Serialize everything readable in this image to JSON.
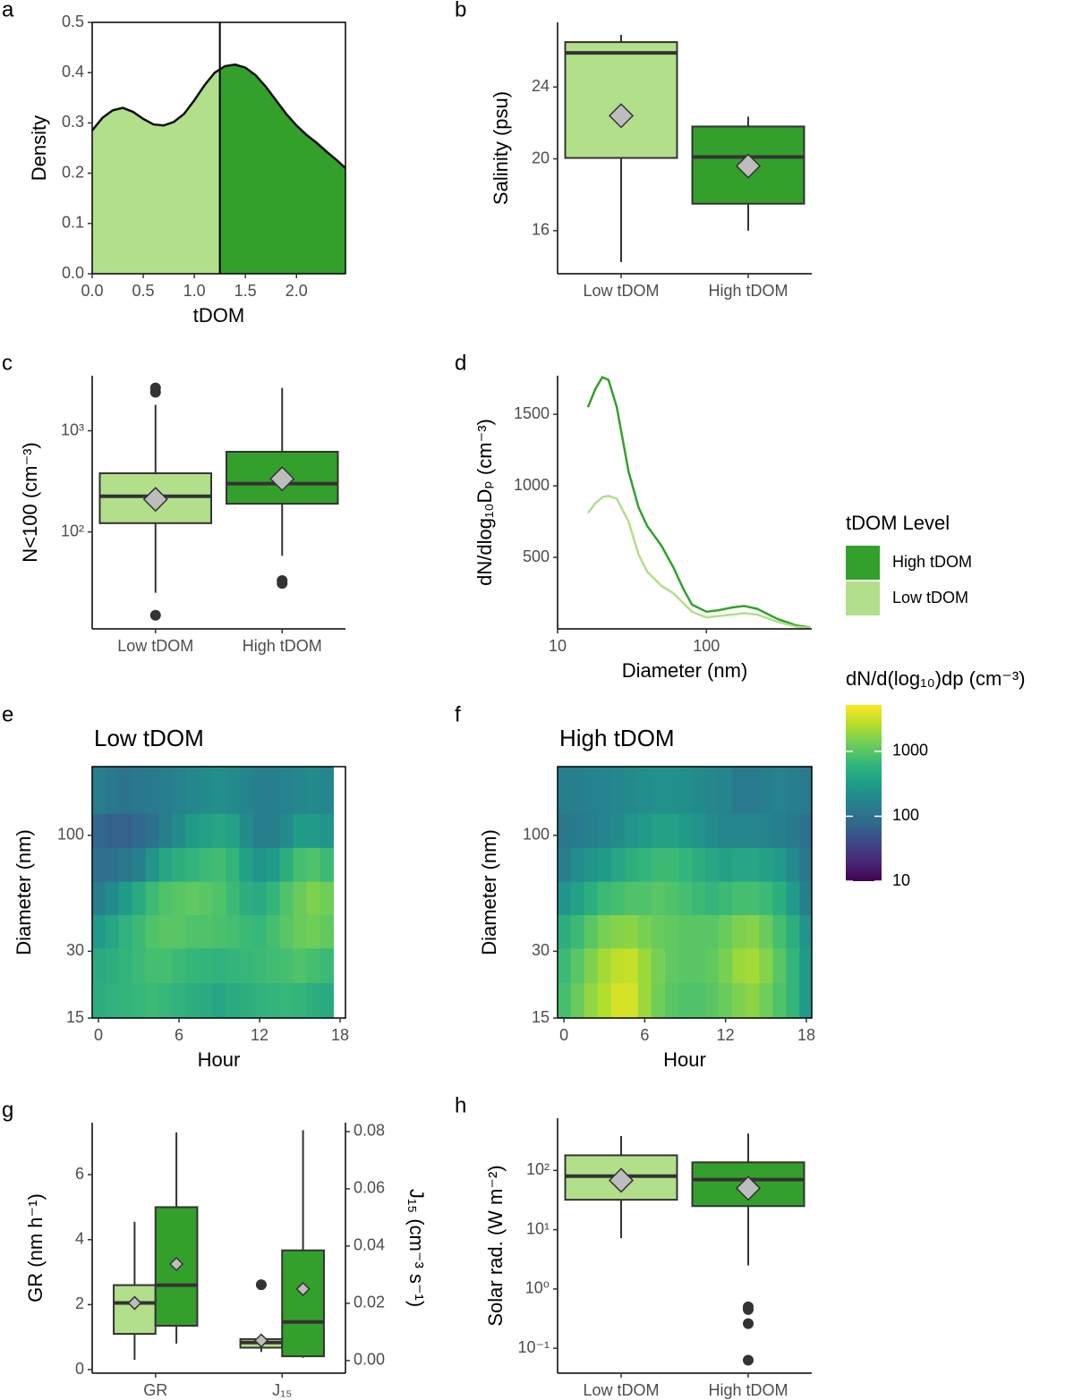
{
  "chart_data": [
    {
      "panel": "a",
      "type": "area",
      "x": [
        0,
        0.1,
        0.2,
        0.3,
        0.4,
        0.5,
        0.6,
        0.7,
        0.8,
        0.9,
        1.0,
        1.1,
        1.2,
        1.3,
        1.4,
        1.5,
        1.6,
        1.7,
        1.8,
        1.9,
        2.0,
        2.1,
        2.2,
        2.3,
        2.4,
        2.48
      ],
      "values": [
        0.285,
        0.31,
        0.325,
        0.33,
        0.322,
        0.308,
        0.297,
        0.295,
        0.302,
        0.318,
        0.345,
        0.375,
        0.4,
        0.413,
        0.416,
        0.41,
        0.395,
        0.372,
        0.345,
        0.318,
        0.295,
        0.276,
        0.26,
        0.242,
        0.225,
        0.21
      ],
      "split": 1.25,
      "colors": [
        "#b2df8a",
        "#33a02c"
      ],
      "xlim": [
        0,
        2.48
      ],
      "ylim": [
        0,
        0.5
      ],
      "xticks": [
        {
          "value": 0,
          "label": "0.0"
        },
        0.5,
        {
          "value": 1,
          "label": "1.0"
        },
        1.5,
        {
          "value": 2,
          "label": "2.0"
        }
      ],
      "yticks": [
        {
          "value": 0,
          "label": "0.0"
        },
        0.1,
        0.2,
        0.3,
        0.4,
        0.5
      ],
      "xlabel": "tDOM",
      "ylabel": "Density",
      "border": true
    },
    {
      "panel": "b",
      "type": "box",
      "categories": [
        "Low tDOM",
        "High tDOM"
      ],
      "boxes": [
        {
          "color": "#b2df8a",
          "whislo": 14.25,
          "q1": 20.05,
          "med": 25.9,
          "q3": 26.5,
          "whishi": 26.9,
          "mean": 22.4,
          "fliers": []
        },
        {
          "color": "#33a02c",
          "whislo": 16,
          "q1": 17.5,
          "med": 20.1,
          "q3": 21.8,
          "whishi": 22.35,
          "mean": 19.6,
          "fliers": []
        }
      ],
      "ylim": [
        13.6,
        27.6
      ],
      "yticks": [
        16,
        20,
        24
      ],
      "ylabel": "Salinity (psu)"
    },
    {
      "panel": "c",
      "type": "box",
      "categories": [
        "Low tDOM",
        "High tDOM"
      ],
      "ylog": true,
      "boxes": [
        {
          "color": "#b2df8a",
          "whislo": 25,
          "q1": 122,
          "med": 225,
          "q3": 380,
          "whishi": 1800,
          "mean": 210,
          "fliers": [
            2650,
            2400,
            15
          ]
        },
        {
          "color": "#33a02c",
          "whislo": 58,
          "q1": 190,
          "med": 300,
          "q3": 620,
          "whishi": 2650,
          "mean": 335,
          "fliers": [
            33,
            31
          ]
        }
      ],
      "ylim": [
        11,
        3500
      ],
      "yticks": [
        {
          "value": 100,
          "label": "10²"
        },
        {
          "value": 1000,
          "label": "10³"
        }
      ],
      "ylabel": "N<100 (cm⁻³)"
    },
    {
      "panel": "d",
      "type": "line",
      "xlog": true,
      "x": [
        16,
        18,
        20,
        22,
        25,
        30,
        35,
        40,
        50,
        60,
        70,
        80,
        100,
        120,
        150,
        180,
        220,
        300,
        400,
        500
      ],
      "series": [
        {
          "name": "High tDOM",
          "color": "#33a02c",
          "values": [
            1550,
            1680,
            1760,
            1740,
            1550,
            1100,
            850,
            720,
            580,
            430,
            280,
            170,
            120,
            130,
            150,
            160,
            140,
            70,
            25,
            8
          ]
        },
        {
          "name": "Low tDOM",
          "color": "#b2df8a",
          "values": [
            810,
            880,
            920,
            930,
            910,
            750,
            520,
            400,
            300,
            250,
            180,
            120,
            80,
            90,
            100,
            110,
            100,
            50,
            15,
            5
          ]
        }
      ],
      "xlim": [
        10,
        511
      ],
      "ylim": [
        0,
        1770
      ],
      "xticks": [
        10,
        100
      ],
      "yticks": [
        500,
        1000,
        1500
      ],
      "xlabel": "Diameter (nm)",
      "ylabel": "dN/dlog₁₀Dₚ (cm⁻³)",
      "legend_title": "tDOM Level"
    },
    {
      "panel": "e",
      "type": "heatmap",
      "title": "Low tDOM",
      "ylog": true,
      "x": [
        0,
        1,
        2,
        3,
        4,
        5,
        6,
        7,
        8,
        9,
        10,
        11,
        12,
        13,
        14,
        15,
        16,
        17
      ],
      "y": [
        18,
        26,
        37,
        52,
        74,
        105,
        150
      ],
      "z": [
        [
          500,
          550,
          600,
          650,
          700,
          650,
          550,
          500,
          450,
          400,
          450,
          500,
          550,
          600,
          650,
          600,
          500,
          450
        ],
        [
          450,
          500,
          600,
          700,
          800,
          800,
          700,
          650,
          600,
          550,
          600,
          650,
          700,
          750,
          800,
          900,
          800,
          700
        ],
        [
          300,
          400,
          550,
          700,
          900,
          1000,
          1000,
          900,
          900,
          850,
          800,
          700,
          650,
          800,
          1000,
          1200,
          1300,
          1100
        ],
        [
          150,
          200,
          300,
          450,
          700,
          900,
          1000,
          1100,
          1000,
          900,
          700,
          500,
          450,
          600,
          900,
          1200,
          1500,
          1300
        ],
        [
          100,
          100,
          120,
          150,
          250,
          400,
          500,
          600,
          700,
          750,
          600,
          350,
          250,
          300,
          500,
          800,
          900,
          700
        ],
        [
          80,
          70,
          70,
          80,
          100,
          150,
          200,
          300,
          350,
          400,
          350,
          200,
          150,
          150,
          200,
          300,
          300,
          250
        ],
        [
          150,
          120,
          110,
          120,
          130,
          150,
          160,
          180,
          200,
          220,
          200,
          170,
          150,
          150,
          160,
          180,
          200,
          180
        ]
      ],
      "xlim": [
        -0.47,
        18.4
      ],
      "ylim": [
        15,
        204
      ],
      "xticks": [
        0,
        6,
        12,
        18
      ],
      "yticks": [
        15,
        30,
        100
      ],
      "xlabel": "Hour",
      "ylabel": "Diameter (nm)",
      "border": true,
      "colorbar": {
        "title": "dN/d(log₁₀)dp (cm⁻³)",
        "zlim": [
          10,
          5200
        ],
        "zticks": [
          10,
          100,
          1000
        ],
        "log": true
      }
    },
    {
      "panel": "f",
      "type": "heatmap",
      "title": "High tDOM",
      "ylog": true,
      "x": [
        0,
        1,
        2,
        3,
        4,
        5,
        6,
        7,
        8,
        9,
        10,
        11,
        12,
        13,
        14,
        15,
        16,
        17,
        18
      ],
      "y": [
        18,
        26,
        37,
        52,
        74,
        105,
        150
      ],
      "z": [
        [
          800,
          1200,
          1800,
          2500,
          3500,
          3500,
          2000,
          1300,
          1000,
          900,
          900,
          1000,
          1200,
          1500,
          1700,
          1300,
          900,
          600,
          300
        ],
        [
          700,
          1000,
          1500,
          2200,
          2800,
          3000,
          2000,
          1400,
          1100,
          1000,
          1000,
          1100,
          1400,
          2000,
          2200,
          1600,
          1000,
          600,
          300
        ],
        [
          500,
          700,
          1000,
          1400,
          1600,
          1700,
          1400,
          1200,
          1100,
          1000,
          1000,
          1000,
          1200,
          1500,
          1600,
          1200,
          800,
          500,
          250
        ],
        [
          250,
          350,
          500,
          700,
          800,
          900,
          900,
          1000,
          900,
          800,
          700,
          600,
          700,
          800,
          800,
          700,
          500,
          300,
          150
        ],
        [
          150,
          200,
          250,
          300,
          400,
          500,
          600,
          700,
          700,
          600,
          500,
          400,
          350,
          400,
          400,
          350,
          300,
          200,
          120
        ],
        [
          120,
          130,
          150,
          170,
          200,
          250,
          300,
          350,
          350,
          300,
          250,
          200,
          180,
          180,
          180,
          170,
          150,
          130,
          100
        ],
        [
          150,
          150,
          160,
          170,
          180,
          200,
          220,
          230,
          230,
          220,
          200,
          180,
          170,
          130,
          130,
          150,
          160,
          150,
          130
        ]
      ],
      "xlim": [
        -0.47,
        18.4
      ],
      "ylim": [
        15,
        204
      ],
      "xticks": [
        0,
        6,
        12,
        18
      ],
      "yticks": [
        15,
        30,
        100
      ],
      "xlabel": "Hour",
      "ylabel": "Diameter (nm)",
      "border": true
    },
    {
      "panel": "g",
      "type": "box",
      "categories": [
        "GR",
        "J₁₅"
      ],
      "category_axes": [
        "y",
        "y2"
      ],
      "series": [
        {
          "color": "#b2df8a",
          "boxes": [
            {
              "whislo": 0.3,
              "q1": 1.1,
              "med": 2.05,
              "q3": 2.6,
              "whishi": 4.55,
              "mean": 2.05,
              "fliers": []
            },
            {
              "whislo": 0.003,
              "q1": 0.0045,
              "med": 0.0063,
              "q3": 0.0075,
              "whishi": 0.0075,
              "mean": 0.007,
              "fliers": [
                0.0265
              ]
            }
          ]
        },
        {
          "color": "#33a02c",
          "boxes": [
            {
              "whislo": 0.8,
              "q1": 1.35,
              "med": 2.6,
              "q3": 5.0,
              "whishi": 7.3,
              "mean": 3.25,
              "fliers": []
            },
            {
              "whislo": 0.001,
              "q1": 0.0015,
              "med": 0.0135,
              "q3": 0.0385,
              "whishi": 0.0805,
              "mean": 0.025,
              "fliers": []
            }
          ]
        }
      ],
      "ylim": [
        -0.11,
        7.6
      ],
      "yticks": [
        0,
        2,
        4,
        6
      ],
      "y2lim": [
        -0.0044,
        0.0831
      ],
      "y2ticks": [
        {
          "value": 0,
          "label": "0.00"
        },
        {
          "value": 0.02,
          "label": "0.02"
        },
        {
          "value": 0.04,
          "label": "0.04"
        },
        {
          "value": 0.06,
          "label": "0.06"
        },
        {
          "value": 0.08,
          "label": "0.08"
        }
      ],
      "ylabel": "GR (nm h⁻¹)",
      "y2label": "J₁₅ (cm⁻³ s⁻¹)"
    },
    {
      "panel": "h",
      "type": "box",
      "categories": [
        "Low tDOM",
        "High tDOM"
      ],
      "ylog": true,
      "boxes": [
        {
          "color": "#b2df8a",
          "whislo": 7.2,
          "q1": 32,
          "med": 80,
          "q3": 180,
          "whishi": 380,
          "mean": 68,
          "fliers": []
        },
        {
          "color": "#33a02c",
          "whislo": 2.5,
          "q1": 25,
          "med": 70,
          "q3": 137,
          "whishi": 420,
          "mean": 50,
          "fliers": [
            0.5,
            0.45,
            0.26,
            0.063
          ]
        }
      ],
      "ylim": [
        0.038,
        760
      ],
      "yticks": [
        {
          "value": 0.1,
          "label": "10⁻¹"
        },
        {
          "value": 1,
          "label": "10⁰"
        },
        {
          "value": 10,
          "label": "10¹"
        },
        {
          "value": 100,
          "label": "10²"
        }
      ],
      "ylabel": "Solar rad. (W m⁻²)"
    }
  ]
}
